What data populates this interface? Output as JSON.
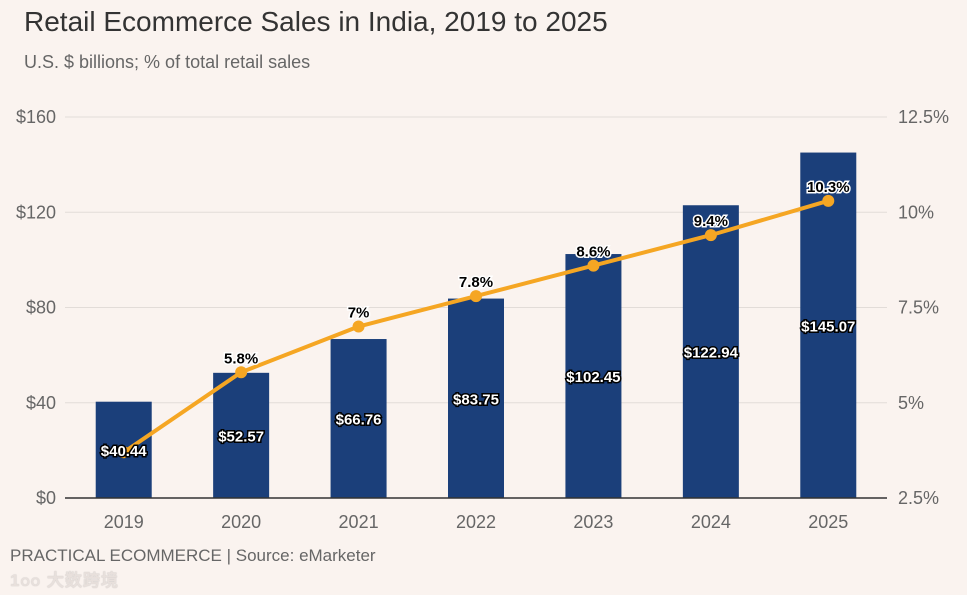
{
  "chart_data": {
    "type": "bar+line",
    "title": "Retail Ecommerce Sales in India, 2019 to 2025",
    "subtitle": "U.S. $ billions; % of total retail sales",
    "categories": [
      "2019",
      "2020",
      "2021",
      "2022",
      "2023",
      "2024",
      "2025"
    ],
    "series": [
      {
        "name": "Sales",
        "type": "bar",
        "axis": "left",
        "values": [
          40.44,
          52.57,
          66.76,
          83.75,
          102.45,
          122.94,
          145.07
        ],
        "labels": [
          "$40.44",
          "$52.57",
          "$66.76",
          "$83.75",
          "$102.45",
          "$122.94",
          "$145.07"
        ],
        "color": "#1b3f7a"
      },
      {
        "name": "% of total retail sales",
        "type": "line",
        "axis": "right",
        "values": [
          3.7,
          5.8,
          7.0,
          7.8,
          8.6,
          9.4,
          10.3
        ],
        "labels": [
          null,
          "5.8%",
          "7%",
          "7.8%",
          "8.6%",
          "9.4%",
          "10.3%"
        ],
        "color": "#f5a623"
      }
    ],
    "ylim_left": [
      0,
      160
    ],
    "yticks_left": [
      "$0",
      "$40",
      "$80",
      "$120",
      "$160"
    ],
    "ylim_right": [
      2.5,
      12.5
    ],
    "yticks_right": [
      "2.5%",
      "5%",
      "7.5%",
      "10%",
      "12.5%"
    ],
    "grid": true
  },
  "footer": "PRACTICAL ECOMMERCE | Source: eMarketer",
  "watermark": "大数跨境"
}
